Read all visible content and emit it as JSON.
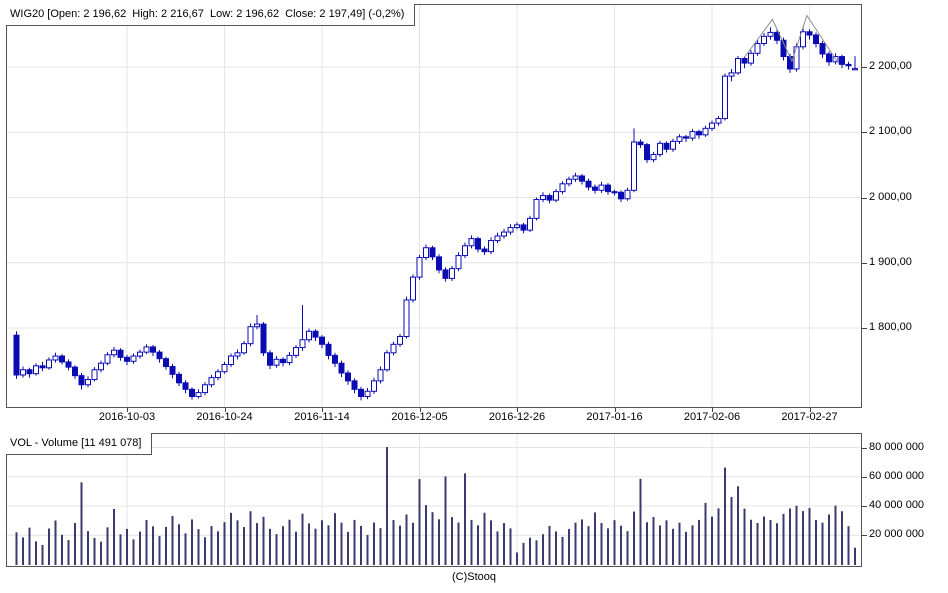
{
  "header": {
    "ohlc_summary": "WIG20 [Open: 2 196,62  High: 2 216,67  Low: 2 196,62  Close: 2 197,49] (-0,2%)"
  },
  "volume_header": {
    "label": "VOL - Volume [11 491 078]"
  },
  "footer": {
    "copyright": "(C)Stooq"
  },
  "colors": {
    "candle": "#0b0bb4",
    "volume_bar": "#3a3a6e",
    "grid": "#e4e4e4",
    "border": "#555555",
    "trendline": "#8c8c8c",
    "background": "#ffffff",
    "text": "#000000"
  },
  "chart_data": {
    "type": "candlestick_with_volume",
    "title": "WIG20 daily candlestick chart with volume, Sep 2016 - Mar 2017",
    "price_axis": {
      "side": "right",
      "labels": [
        "2 200,00",
        "2 100,00",
        "2 000,00",
        "1 900,00",
        "1 800,00"
      ],
      "values": [
        2200,
        2100,
        2000,
        1900,
        1800
      ],
      "range": [
        1678,
        2262
      ]
    },
    "volume_axis": {
      "side": "right",
      "labels": [
        "80 000 000",
        "60 000 000",
        "40 000 000",
        "20 000 000"
      ],
      "values_millions": [
        80,
        60,
        40,
        20
      ],
      "range_millions": [
        0,
        90
      ]
    },
    "x_axis": {
      "ticks": [
        {
          "label": "2016-10-03",
          "index": 17
        },
        {
          "label": "2016-10-24",
          "index": 32
        },
        {
          "label": "2016-11-14",
          "index": 47
        },
        {
          "label": "2016-12-05",
          "index": 62
        },
        {
          "label": "2016-12-26",
          "index": 77
        },
        {
          "label": "2017-01-16",
          "index": 92
        },
        {
          "label": "2017-02-06",
          "index": 107
        },
        {
          "label": "2017-02-27",
          "index": 122
        }
      ]
    },
    "grid": true,
    "volumes_unit": "millions",
    "candles_format": [
      "date",
      "open",
      "high",
      "low",
      "close",
      "volume_millions"
    ],
    "candles": [
      [
        "2016-09-08",
        1789,
        1795,
        1722,
        1728,
        22.0
      ],
      [
        "2016-09-09",
        1728,
        1741,
        1724,
        1736,
        18.5
      ],
      [
        "2016-09-12",
        1736,
        1739,
        1724,
        1730,
        25.2
      ],
      [
        "2016-09-13",
        1730,
        1746,
        1727,
        1742,
        15.8
      ],
      [
        "2016-09-14",
        1742,
        1748,
        1734,
        1739,
        13.4
      ],
      [
        "2016-09-15",
        1739,
        1755,
        1736,
        1751,
        24.6
      ],
      [
        "2016-09-16",
        1751,
        1762,
        1747,
        1757,
        30.1
      ],
      [
        "2016-09-19",
        1757,
        1760,
        1744,
        1748,
        20.3
      ],
      [
        "2016-09-20",
        1748,
        1752,
        1735,
        1740,
        16.7
      ],
      [
        "2016-09-21",
        1740,
        1743,
        1722,
        1727,
        28.4
      ],
      [
        "2016-09-22",
        1727,
        1731,
        1706,
        1713,
        56.2
      ],
      [
        "2016-09-23",
        1713,
        1726,
        1709,
        1721,
        22.8
      ],
      [
        "2016-09-26",
        1721,
        1740,
        1718,
        1736,
        18.2
      ],
      [
        "2016-09-27",
        1736,
        1750,
        1732,
        1746,
        15.6
      ],
      [
        "2016-09-28",
        1746,
        1763,
        1743,
        1759,
        25.4
      ],
      [
        "2016-09-29",
        1759,
        1771,
        1755,
        1766,
        38.0
      ],
      [
        "2016-09-30",
        1766,
        1769,
        1750,
        1755,
        20.6
      ],
      [
        "2016-10-03",
        1755,
        1759,
        1743,
        1749,
        24.3
      ],
      [
        "2016-10-04",
        1749,
        1761,
        1745,
        1757,
        17.2
      ],
      [
        "2016-10-05",
        1757,
        1767,
        1753,
        1763,
        22.5
      ],
      [
        "2016-10-06",
        1763,
        1775,
        1760,
        1771,
        30.4
      ],
      [
        "2016-10-07",
        1771,
        1774,
        1757,
        1763,
        26.1
      ],
      [
        "2016-10-10",
        1763,
        1766,
        1747,
        1753,
        19.4
      ],
      [
        "2016-10-11",
        1753,
        1756,
        1736,
        1741,
        25.7
      ],
      [
        "2016-10-12",
        1741,
        1745,
        1723,
        1729,
        33.2
      ],
      [
        "2016-10-13",
        1729,
        1733,
        1711,
        1716,
        27.5
      ],
      [
        "2016-10-14",
        1716,
        1720,
        1700,
        1706,
        21.3
      ],
      [
        "2016-10-17",
        1706,
        1709,
        1690,
        1695,
        30.8
      ],
      [
        "2016-10-18",
        1695,
        1706,
        1692,
        1701,
        24.2
      ],
      [
        "2016-10-19",
        1701,
        1717,
        1697,
        1713,
        18.6
      ],
      [
        "2016-10-20",
        1713,
        1728,
        1709,
        1724,
        26.3
      ],
      [
        "2016-10-21",
        1724,
        1737,
        1720,
        1733,
        22.7
      ],
      [
        "2016-10-24",
        1733,
        1748,
        1730,
        1744,
        28.9
      ],
      [
        "2016-10-25",
        1744,
        1761,
        1740,
        1757,
        35.3
      ],
      [
        "2016-10-26",
        1757,
        1767,
        1752,
        1762,
        30.2
      ],
      [
        "2016-10-27",
        1762,
        1780,
        1759,
        1776,
        25.6
      ],
      [
        "2016-10-28",
        1776,
        1807,
        1772,
        1802,
        36.4
      ],
      [
        "2016-10-31",
        1802,
        1820,
        1798,
        1806,
        28.3
      ],
      [
        "2016-11-01",
        1806,
        1809,
        1757,
        1762,
        32.6
      ],
      [
        "2016-11-02",
        1762,
        1766,
        1737,
        1743,
        24.4
      ],
      [
        "2016-11-03",
        1743,
        1757,
        1739,
        1752,
        20.8
      ],
      [
        "2016-11-04",
        1752,
        1755,
        1741,
        1747,
        26.2
      ],
      [
        "2016-11-07",
        1747,
        1763,
        1743,
        1758,
        30.6
      ],
      [
        "2016-11-08",
        1758,
        1774,
        1754,
        1770,
        22.4
      ],
      [
        "2016-11-09",
        1770,
        1835,
        1765,
        1782,
        34.7
      ],
      [
        "2016-11-10",
        1782,
        1799,
        1778,
        1795,
        28.1
      ],
      [
        "2016-11-11",
        1795,
        1798,
        1780,
        1786,
        24.5
      ],
      [
        "2016-11-14",
        1786,
        1789,
        1769,
        1775,
        30.3
      ],
      [
        "2016-11-15",
        1775,
        1779,
        1752,
        1758,
        26.8
      ],
      [
        "2016-11-16",
        1758,
        1762,
        1740,
        1746,
        35.1
      ],
      [
        "2016-11-17",
        1746,
        1750,
        1725,
        1731,
        28.6
      ],
      [
        "2016-11-18",
        1731,
        1735,
        1713,
        1719,
        22.3
      ],
      [
        "2016-11-21",
        1719,
        1723,
        1700,
        1706,
        30.5
      ],
      [
        "2016-11-22",
        1706,
        1710,
        1689,
        1695,
        26.4
      ],
      [
        "2016-11-23",
        1695,
        1708,
        1691,
        1703,
        20.2
      ],
      [
        "2016-11-24",
        1703,
        1724,
        1699,
        1719,
        28.7
      ],
      [
        "2016-11-25",
        1719,
        1741,
        1715,
        1736,
        24.9
      ],
      [
        "2016-11-28",
        1736,
        1766,
        1733,
        1762,
        80.3
      ],
      [
        "2016-11-29",
        1762,
        1779,
        1758,
        1775,
        30.4
      ],
      [
        "2016-11-30",
        1775,
        1791,
        1771,
        1787,
        26.6
      ],
      [
        "2016-12-01",
        1787,
        1848,
        1784,
        1843,
        34.2
      ],
      [
        "2016-12-02",
        1843,
        1882,
        1839,
        1878,
        28.5
      ],
      [
        "2016-12-05",
        1878,
        1912,
        1874,
        1908,
        58.4
      ],
      [
        "2016-12-06",
        1908,
        1928,
        1904,
        1923,
        40.6
      ],
      [
        "2016-12-07",
        1923,
        1926,
        1904,
        1909,
        35.8
      ],
      [
        "2016-12-08",
        1909,
        1913,
        1884,
        1889,
        30.9
      ],
      [
        "2016-12-09",
        1889,
        1893,
        1871,
        1876,
        60.2
      ],
      [
        "2016-12-12",
        1876,
        1895,
        1872,
        1891,
        32.4
      ],
      [
        "2016-12-13",
        1891,
        1916,
        1887,
        1911,
        28.7
      ],
      [
        "2016-12-14",
        1911,
        1931,
        1907,
        1926,
        62.3
      ],
      [
        "2016-12-15",
        1926,
        1942,
        1922,
        1937,
        30.5
      ],
      [
        "2016-12-16",
        1937,
        1940,
        1916,
        1921,
        26.8
      ],
      [
        "2016-12-19",
        1921,
        1925,
        1912,
        1917,
        35.4
      ],
      [
        "2016-12-20",
        1917,
        1939,
        1913,
        1934,
        30.2
      ],
      [
        "2016-12-21",
        1934,
        1946,
        1930,
        1941,
        22.6
      ],
      [
        "2016-12-22",
        1941,
        1952,
        1937,
        1947,
        28.3
      ],
      [
        "2016-12-23",
        1947,
        1959,
        1943,
        1954,
        24.7
      ],
      [
        "2016-12-26",
        1954,
        1962,
        1951,
        1958,
        8.2
      ],
      [
        "2016-12-27",
        1958,
        1961,
        1945,
        1950,
        14.8
      ],
      [
        "2016-12-28",
        1950,
        1972,
        1947,
        1968,
        18.3
      ],
      [
        "2016-12-29",
        1968,
        2000,
        1965,
        1997,
        16.5
      ],
      [
        "2016-12-30",
        1997,
        2008,
        1993,
        2003,
        20.7
      ],
      [
        "2017-01-02",
        2003,
        2006,
        1991,
        1996,
        26.4
      ],
      [
        "2017-01-03",
        1996,
        2013,
        1993,
        2009,
        22.6
      ],
      [
        "2017-01-04",
        2009,
        2025,
        2005,
        2021,
        18.9
      ],
      [
        "2017-01-05",
        2021,
        2032,
        2017,
        2028,
        24.3
      ],
      [
        "2017-01-06",
        2028,
        2038,
        2024,
        2033,
        28.6
      ],
      [
        "2017-01-09",
        2033,
        2036,
        2020,
        2025,
        30.8
      ],
      [
        "2017-01-10",
        2025,
        2029,
        2011,
        2016,
        26.2
      ],
      [
        "2017-01-11",
        2016,
        2020,
        2006,
        2011,
        35.6
      ],
      [
        "2017-01-12",
        2011,
        2024,
        2007,
        2019,
        28.4
      ],
      [
        "2017-01-13",
        2019,
        2022,
        2004,
        2009,
        24.7
      ],
      [
        "2017-01-16",
        2009,
        2012,
        2003,
        2008,
        30.3
      ],
      [
        "2017-01-17",
        2008,
        2011,
        1993,
        1998,
        26.5
      ],
      [
        "2017-01-18",
        1998,
        2015,
        1995,
        2011,
        22.8
      ],
      [
        "2017-01-19",
        2011,
        2106,
        2008,
        2085,
        36.2
      ],
      [
        "2017-01-20",
        2085,
        2089,
        2076,
        2081,
        58.6
      ],
      [
        "2017-01-23",
        2081,
        2084,
        2053,
        2058,
        28.9
      ],
      [
        "2017-01-24",
        2058,
        2070,
        2054,
        2066,
        32.5
      ],
      [
        "2017-01-25",
        2066,
        2087,
        2062,
        2083,
        26.7
      ],
      [
        "2017-01-26",
        2083,
        2086,
        2069,
        2074,
        30.2
      ],
      [
        "2017-01-27",
        2074,
        2090,
        2070,
        2086,
        24.4
      ],
      [
        "2017-01-30",
        2086,
        2097,
        2082,
        2093,
        28.6
      ],
      [
        "2017-01-31",
        2093,
        2096,
        2085,
        2091,
        22.3
      ],
      [
        "2017-02-01",
        2091,
        2105,
        2087,
        2101,
        26.8
      ],
      [
        "2017-02-02",
        2101,
        2104,
        2090,
        2096,
        30.5
      ],
      [
        "2017-02-03",
        2096,
        2110,
        2093,
        2106,
        42.1
      ],
      [
        "2017-02-06",
        2106,
        2118,
        2102,
        2114,
        32.7
      ],
      [
        "2017-02-07",
        2114,
        2125,
        2110,
        2121,
        38.4
      ],
      [
        "2017-02-08",
        2121,
        2190,
        2118,
        2186,
        66.3
      ],
      [
        "2017-02-09",
        2186,
        2197,
        2178,
        2191,
        46.2
      ],
      [
        "2017-02-10",
        2191,
        2217,
        2188,
        2213,
        53.5
      ],
      [
        "2017-02-13",
        2213,
        2216,
        2198,
        2206,
        38.2
      ],
      [
        "2017-02-14",
        2206,
        2226,
        2202,
        2221,
        30.6
      ],
      [
        "2017-02-15",
        2221,
        2241,
        2217,
        2236,
        28.4
      ],
      [
        "2017-02-16",
        2236,
        2252,
        2232,
        2247,
        32.8
      ],
      [
        "2017-02-17",
        2247,
        2261,
        2242,
        2253,
        30.4
      ],
      [
        "2017-02-20",
        2253,
        2257,
        2235,
        2241,
        28.2
      ],
      [
        "2017-02-21",
        2241,
        2245,
        2210,
        2216,
        34.6
      ],
      [
        "2017-02-22",
        2216,
        2220,
        2191,
        2197,
        38.3
      ],
      [
        "2017-02-23",
        2197,
        2236,
        2193,
        2231,
        40.2
      ],
      [
        "2017-02-24",
        2231,
        2262,
        2227,
        2254,
        36.5
      ],
      [
        "2017-02-27",
        2254,
        2258,
        2242,
        2249,
        38.7
      ],
      [
        "2017-02-28",
        2249,
        2253,
        2230,
        2236,
        30.4
      ],
      [
        "2017-03-01",
        2236,
        2240,
        2214,
        2220,
        28.6
      ],
      [
        "2017-03-02",
        2220,
        2224,
        2202,
        2208,
        34.2
      ],
      [
        "2017-03-03",
        2208,
        2221,
        2204,
        2216,
        40.3
      ],
      [
        "2017-03-06",
        2216,
        2219,
        2198,
        2204,
        36.4
      ],
      [
        "2017-03-07",
        2204,
        2208,
        2196,
        2202,
        26.2
      ],
      [
        "2017-03-08",
        2196.62,
        2216.67,
        2196.62,
        2197.49,
        11.49
      ]
    ],
    "annotations": [
      {
        "type": "trendline_zigzag",
        "points_index_price": [
          [
            112,
            2215
          ],
          [
            116.3,
            2273
          ],
          [
            119.3,
            2209
          ],
          [
            121.6,
            2279
          ],
          [
            126.5,
            2205
          ]
        ]
      }
    ]
  }
}
